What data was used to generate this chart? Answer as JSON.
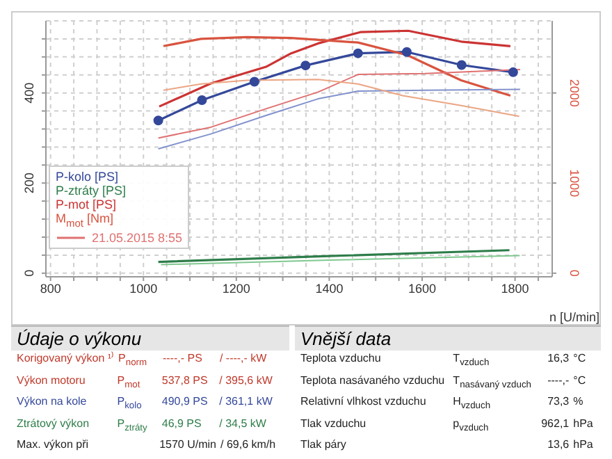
{
  "chart_data": {
    "type": "line",
    "xlabel": "n [U/min]",
    "xlim": [
      790,
      1880
    ],
    "xticks": [
      800,
      {
        "value": 850,
        "label": null
      },
      {
        "value": 900,
        "label": null
      },
      {
        "value": 950,
        "label": null
      },
      1000,
      {
        "value": 1050,
        "label": null
      },
      {
        "value": 1100,
        "label": null
      },
      {
        "value": 1150,
        "label": null
      },
      1200,
      {
        "value": 1250,
        "label": null
      },
      {
        "value": 1300,
        "label": null
      },
      {
        "value": 1350,
        "label": null
      },
      1400,
      {
        "value": 1450,
        "label": null
      },
      {
        "value": 1500,
        "label": null
      },
      {
        "value": 1550,
        "label": null
      },
      1600,
      {
        "value": 1650,
        "label": null
      },
      {
        "value": 1700,
        "label": null
      },
      {
        "value": 1750,
        "label": null
      },
      1800,
      {
        "value": 1850,
        "label": null
      }
    ],
    "ylim": [
      -8,
      560
    ],
    "yticks": [
      0,
      {
        "value": 40,
        "label": null
      },
      {
        "value": 80,
        "label": null
      },
      {
        "value": 120,
        "label": null
      },
      {
        "value": 160,
        "label": null
      },
      200,
      {
        "value": 240,
        "label": null
      },
      {
        "value": 280,
        "label": null
      },
      {
        "value": 320,
        "label": null
      },
      {
        "value": 360,
        "label": null
      },
      400,
      {
        "value": 440,
        "label": null
      },
      {
        "value": 480,
        "label": null
      },
      {
        "value": 520,
        "label": null
      }
    ],
    "y2lim": [
      -40,
      2800
    ],
    "y2ticks": [
      0,
      1000,
      2000
    ],
    "grid": true,
    "legend": "bottom left",
    "marker": "none",
    "line_style": "solid",
    "series": [
      {
        "name": "P-kolo [PS]",
        "color": "#34489a",
        "marker": "circle",
        "x": [
          1032,
          1126,
          1239,
          1349,
          1462,
          1567,
          1685,
          1796
        ],
        "values": [
          339,
          384,
          425,
          461,
          488,
          491,
          462,
          446
        ]
      },
      {
        "name": "P-ztráty [PS]",
        "color": "#2e7d4a",
        "x": [
          1032,
          1400,
          1788
        ],
        "values": [
          25,
          38,
          51
        ]
      },
      {
        "name": "P-mot [PS]",
        "color": "#cc3333",
        "x": [
          1034,
          1145,
          1264,
          1318,
          1376,
          1467,
          1570,
          1684,
          1790
        ],
        "values": [
          370,
          421,
          458,
          488,
          510,
          535,
          538,
          514,
          504
        ]
      },
      {
        "name": "M$_{mot}$ [Nm]",
        "color": "#d9533f",
        "axis": "y2",
        "x": [
          1043,
          1124,
          1222,
          1318,
          1462,
          1568,
          1684,
          1790
        ],
        "values": [
          2520,
          2600,
          2620,
          2610,
          2560,
          2420,
          2140,
          1970
        ]
      },
      {
        "color": "#8191cc",
        "x": [
          1032,
          1145,
          1264,
          1376,
          1462,
          1606,
          1811
        ],
        "values": [
          276,
          309,
          350,
          387,
          404,
          406,
          408
        ]
      },
      {
        "name": "21.05.2015 8:55",
        "color": "#e07070",
        "x": [
          1032,
          1145,
          1264,
          1376,
          1462,
          1606,
          1811
        ],
        "values": [
          300,
          324,
          365,
          402,
          441,
          443,
          452
        ]
      },
      {
        "color": "#eba583",
        "axis": "y2",
        "x": [
          1043,
          1124,
          1222,
          1376,
          1462,
          1558,
          1684,
          1809
        ],
        "values": [
          2030,
          2100,
          2140,
          2150,
          2100,
          1970,
          1860,
          1740
        ]
      },
      {
        "color": "#80c890",
        "x": [
          1038,
          1400,
          1810
        ],
        "values": [
          19,
          29,
          39
        ]
      }
    ],
    "annotations": [
      "Údaje o výkonu",
      "Korigovaný výkon ¹⁾",
      "P$_{norm}$",
      "----,- PS",
      "/ ----,- kW",
      "Výkon motoru",
      "P$_{mot}$",
      "537,8 PS",
      "/ 395,6 kW",
      "Výkon na kole",
      "P$_{kolo}$",
      "490,9 PS",
      "/ 361,1 kW",
      "Ztrátový výkon",
      "P$_{ztráty}$",
      "46,9 PS",
      "/ 34,5 kW",
      "Max. výkon při",
      "1570 U/min",
      "/ 69,6 km/h",
      "Vnější data",
      "Teplota vzduchu",
      "T$_{vzduch}$",
      "16,3",
      "°C",
      "Teplota nasávaného vzduchu",
      "T$_{nasávaný vzduch}$",
      "----,-",
      "°C",
      "Relativní vlhkost vzduchu",
      "H$_{vzduch}$",
      "73,3",
      "%",
      "Tlak vzduchu",
      "p$_{vzduch}$",
      "962,1",
      "hPa",
      "Tlak páry",
      "13,6",
      "hPa"
    ]
  }
}
